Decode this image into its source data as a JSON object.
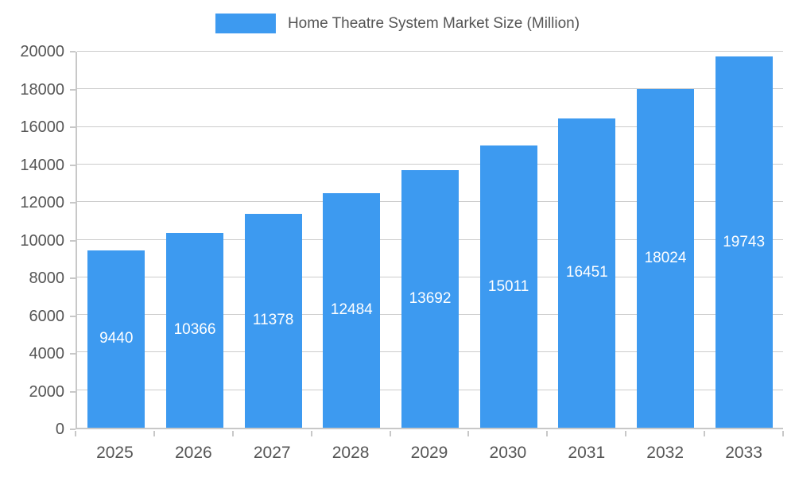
{
  "chart_data": {
    "type": "bar",
    "title": "Home Theatre System Market Size (Million)",
    "categories": [
      "2025",
      "2026",
      "2027",
      "2028",
      "2029",
      "2030",
      "2031",
      "2032",
      "2033"
    ],
    "values": [
      9440,
      10366,
      11378,
      12484,
      13692,
      15011,
      16451,
      18024,
      19743
    ],
    "xlabel": "",
    "ylabel": "",
    "ylim": [
      0,
      20000
    ],
    "ytick_step": 2000,
    "grid": true,
    "legend_position": "top",
    "bar_color": "#3d9af0",
    "value_label_color": "#ffffff",
    "axis_text_color": "#555555",
    "grid_color": "#cccccc"
  }
}
